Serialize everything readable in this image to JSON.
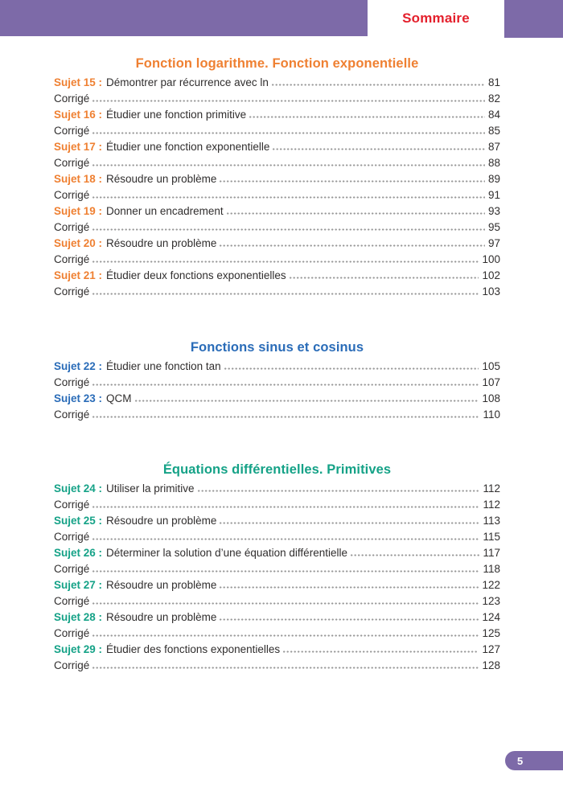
{
  "header": {
    "title": "Sommaire",
    "bar_color": "#7d6aa8",
    "title_color": "#e4202c"
  },
  "sections": [
    {
      "title": "Fonction logarithme. Fonction exponentielle",
      "color": "#ef8032",
      "entries": [
        {
          "label": "Sujet 15 :",
          "text": "Démontrer par récurrence avec ln",
          "page": "81"
        },
        {
          "label": "",
          "text": "Corrigé",
          "page": "82"
        },
        {
          "label": "Sujet 16 :",
          "text": "Étudier une fonction primitive",
          "page": "84"
        },
        {
          "label": "",
          "text": "Corrigé",
          "page": "85"
        },
        {
          "label": "Sujet 17 :",
          "text": "Étudier une fonction exponentielle",
          "page": "87"
        },
        {
          "label": "",
          "text": "Corrigé",
          "page": "88"
        },
        {
          "label": "Sujet 18 :",
          "text": "Résoudre un problème",
          "page": "89"
        },
        {
          "label": "",
          "text": "Corrigé",
          "page": "91"
        },
        {
          "label": "Sujet 19 :",
          "text": "Donner un encadrement",
          "page": "93"
        },
        {
          "label": "",
          "text": "Corrigé",
          "page": "95"
        },
        {
          "label": "Sujet 20 :",
          "text": "Résoudre un problème",
          "page": "97"
        },
        {
          "label": "",
          "text": "Corrigé",
          "page": "100"
        },
        {
          "label": "Sujet 21 :",
          "text": "Étudier deux fonctions exponentielles",
          "page": "102"
        },
        {
          "label": "",
          "text": "Corrigé",
          "page": "103"
        }
      ]
    },
    {
      "title": "Fonctions sinus et cosinus",
      "color": "#2a6cb8",
      "entries": [
        {
          "label": "Sujet 22 :",
          "text": "Étudier une fonction tan",
          "page": "105"
        },
        {
          "label": "",
          "text": "Corrigé",
          "page": "107"
        },
        {
          "label": "Sujet 23 :",
          "text": "QCM",
          "page": "108"
        },
        {
          "label": "",
          "text": "Corrigé",
          "page": "110"
        }
      ]
    },
    {
      "title": "Équations différentielles. Primitives",
      "color": "#15a287",
      "entries": [
        {
          "label": "Sujet 24 :",
          "text": "Utiliser la primitive",
          "page": "112"
        },
        {
          "label": "",
          "text": "Corrigé",
          "page": "112"
        },
        {
          "label": "Sujet 25 :",
          "text": "Résoudre un problème",
          "page": "113"
        },
        {
          "label": "",
          "text": "Corrigé",
          "page": "115"
        },
        {
          "label": "Sujet 26 :",
          "text": "Déterminer la solution d’une équation différentielle",
          "page": "117"
        },
        {
          "label": "",
          "text": "Corrigé",
          "page": "118"
        },
        {
          "label": "Sujet 27 :",
          "text": "Résoudre un problème",
          "page": "122"
        },
        {
          "label": "",
          "text": "Corrigé",
          "page": "123"
        },
        {
          "label": "Sujet 28 :",
          "text": "Résoudre un problème",
          "page": "124"
        },
        {
          "label": "",
          "text": "Corrigé",
          "page": "125"
        },
        {
          "label": "Sujet 29 :",
          "text": "Étudier des fonctions exponentielles",
          "page": "127"
        },
        {
          "label": "",
          "text": "Corrigé",
          "page": "128"
        }
      ]
    }
  ],
  "footer": {
    "page_number": "5"
  }
}
